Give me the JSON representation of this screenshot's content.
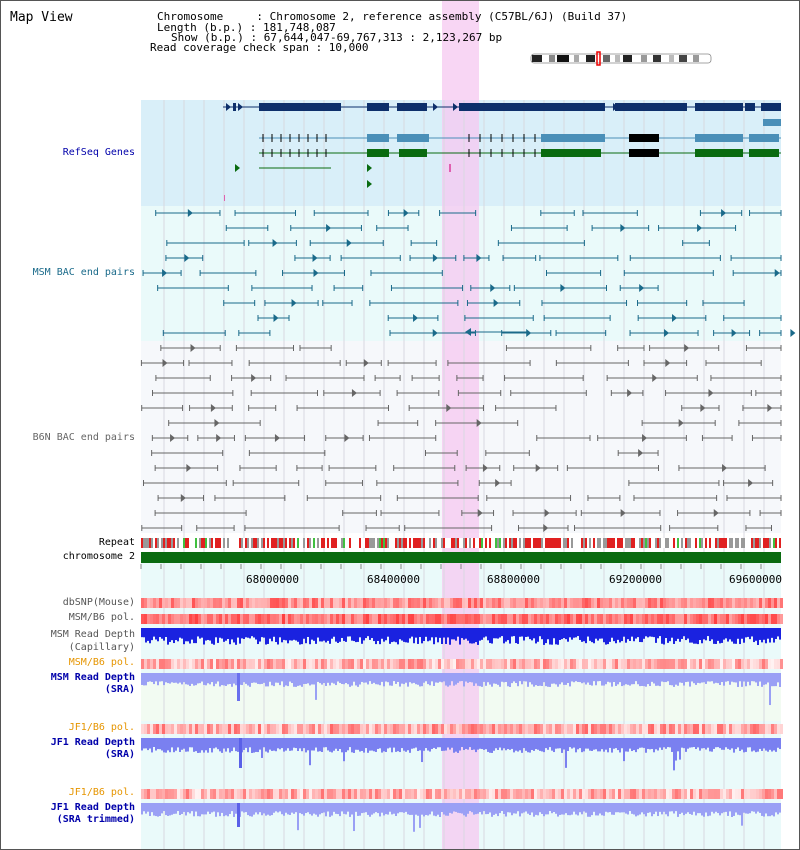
{
  "view": {
    "title": "Map View"
  },
  "header": {
    "chromosome_line": "Chromosome     : Chromosome 2, reference assembly (C57BL/6J) (Build 37)",
    "length_line": "Length (b.p.) : 181,748,087",
    "show_line": "Show (b.p.) : 67,644,047-69,767,313 : 2,123,267 bp",
    "coverage_line": "Read coverage check span : 10,000"
  },
  "tracks": {
    "refseq": "RefSeq Genes",
    "msm_bac": "MSM BAC end pairs",
    "b6n_bac": "B6N BAC end pairs",
    "repeat": "Repeat",
    "chromosome": "chromosome 2",
    "dbsnp": "dbSNP(Mouse)",
    "msm_b6_pol_1": "MSM/B6 pol.",
    "msm_depth_cap_1": "MSM Read Depth",
    "msm_depth_cap_2": "(Capillary)",
    "msm_b6_pol_2": "MSM/B6 pol.",
    "msm_depth_sra_1": "MSM Read Depth",
    "msm_depth_sra_2": "(SRA)",
    "jf1_b6_pol_1": "JF1/B6 pol.",
    "jf1_depth_sra_1": "JF1 Read Depth",
    "jf1_depth_sra_2": "(SRA)",
    "jf1_b6_pol_2": "JF1/B6 pol.",
    "jf1_depth_trim_1": "JF1 Read Depth",
    "jf1_depth_trim_2": "(SRA trimmed)"
  },
  "axis": {
    "ticks": [
      "68000000",
      "68400000",
      "68800000",
      "69200000",
      "69600000"
    ]
  },
  "colors": {
    "gene_dark": "#0d2f6b",
    "gene_mid": "#4a8fb8",
    "gene_green": "#0a6b10",
    "bac_msm": "#1a6a8a",
    "bac_b6n": "#666666",
    "highlight": "#f5c8f0",
    "label_blue": "#0000aa",
    "label_teal": "#1a6a8a",
    "label_orange": "#e69500"
  }
}
